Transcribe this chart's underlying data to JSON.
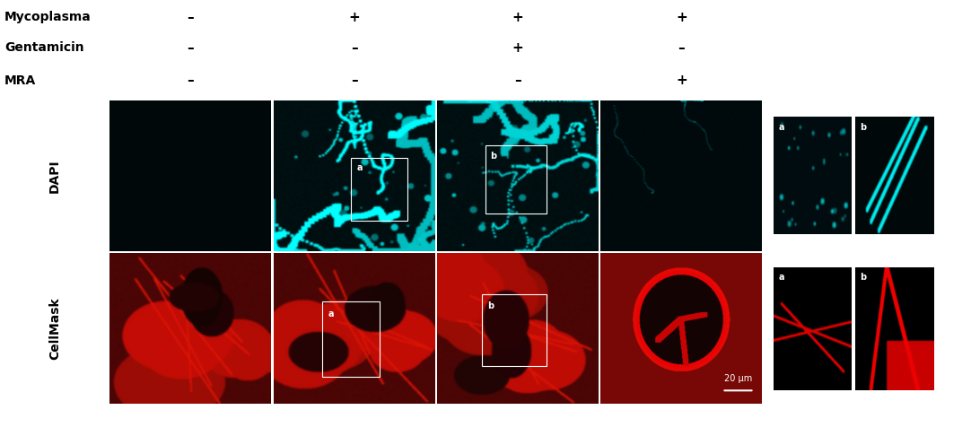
{
  "title_rows": [
    {
      "label": "Mycoplasma",
      "values": [
        "–",
        "+",
        "+",
        "+"
      ]
    },
    {
      "label": "Gentamicin",
      "values": [
        "–",
        "–",
        "+",
        "–"
      ]
    },
    {
      "label": "MRA",
      "values": [
        "–",
        "–",
        "–",
        "+"
      ]
    }
  ],
  "dapi_label": "DAPI",
  "cellmask_label": "CellMask",
  "scale_bar_text": "20 μm",
  "bg_color": "#ffffff"
}
